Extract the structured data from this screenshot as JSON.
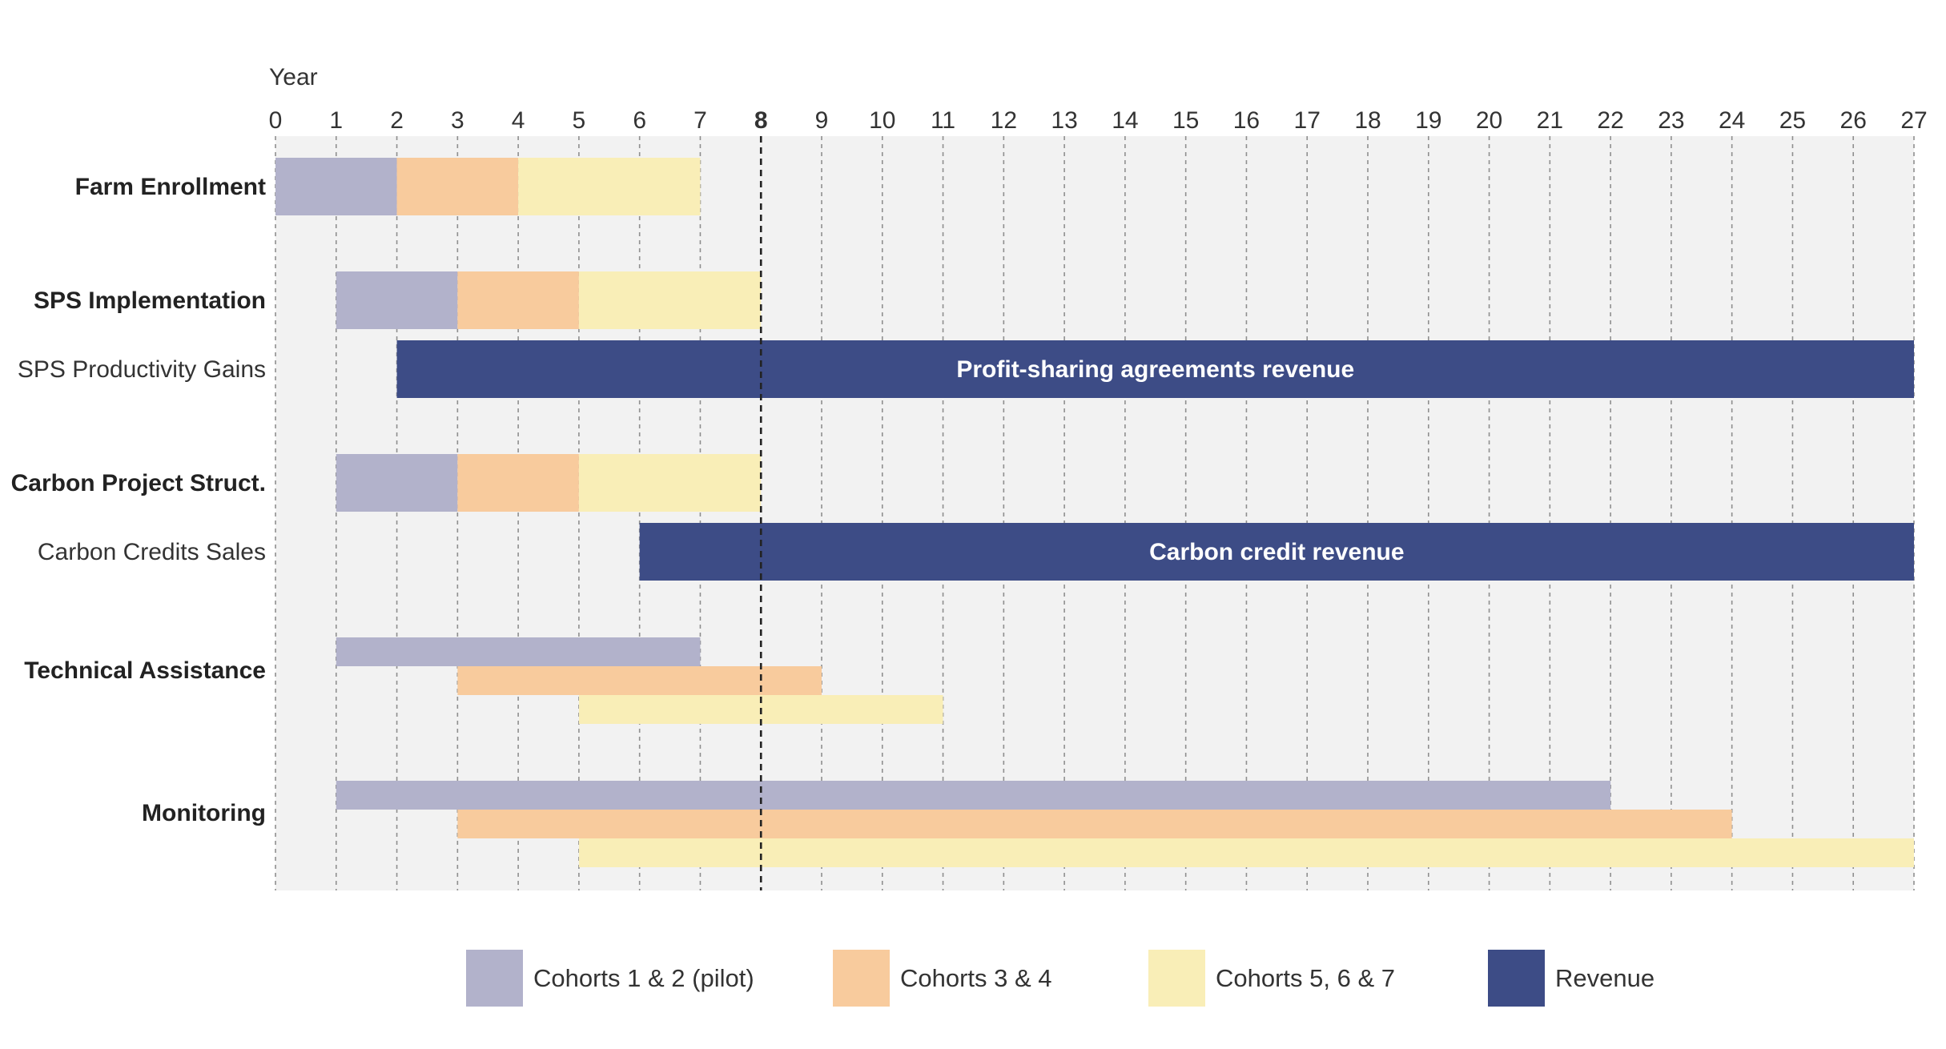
{
  "chart_data": {
    "type": "gantt",
    "x_axis_label": "Year",
    "x_range": [
      0,
      27
    ],
    "x_ticks": [
      0,
      1,
      2,
      3,
      4,
      5,
      6,
      7,
      8,
      9,
      10,
      11,
      12,
      13,
      14,
      15,
      16,
      17,
      18,
      19,
      20,
      21,
      22,
      23,
      24,
      25,
      26,
      27
    ],
    "marker_year": 8,
    "grid": true,
    "legend_position": "bottom",
    "series": [
      {
        "key": "c12",
        "name": "Cohorts 1 & 2 (pilot)",
        "color": "#b2b2cb"
      },
      {
        "key": "c34",
        "name": "Cohorts 3 & 4",
        "color": "#f8cb9d"
      },
      {
        "key": "c567",
        "name": "Cohorts 5, 6 & 7",
        "color": "#f9eeb7"
      },
      {
        "key": "rev",
        "name": "Revenue",
        "color": "#3d4c86"
      }
    ],
    "rows": [
      {
        "label": "Farm Enrollment",
        "bold": true,
        "segments": [
          {
            "series": "c12",
            "start": 0,
            "end": 2
          },
          {
            "series": "c34",
            "start": 2,
            "end": 4
          },
          {
            "series": "c567",
            "start": 4,
            "end": 7
          }
        ]
      },
      {
        "label": "SPS Implementation",
        "bold": true,
        "segments": [
          {
            "series": "c12",
            "start": 1,
            "end": 3
          },
          {
            "series": "c34",
            "start": 3,
            "end": 5
          },
          {
            "series": "c567",
            "start": 5,
            "end": 8
          }
        ]
      },
      {
        "label": "SPS Productivity Gains",
        "bold": false,
        "segments": [
          {
            "series": "rev",
            "start": 2,
            "end": 27,
            "text": "Profit-sharing agreements revenue"
          }
        ]
      },
      {
        "label": "Carbon Project Struct.",
        "bold": true,
        "segments": [
          {
            "series": "c12",
            "start": 1,
            "end": 3
          },
          {
            "series": "c34",
            "start": 3,
            "end": 5
          },
          {
            "series": "c567",
            "start": 5,
            "end": 8
          }
        ]
      },
      {
        "label": "Carbon Credits Sales",
        "bold": false,
        "segments": [
          {
            "series": "rev",
            "start": 6,
            "end": 27,
            "text": "Carbon credit revenue"
          }
        ]
      },
      {
        "label": "Technical Assistance",
        "bold": true,
        "segments": [
          {
            "series": "c12",
            "start": 1,
            "end": 7
          },
          {
            "series": "c34",
            "start": 3,
            "end": 9
          },
          {
            "series": "c567",
            "start": 5,
            "end": 11
          }
        ]
      },
      {
        "label": "Monitoring",
        "bold": true,
        "segments": [
          {
            "series": "c12",
            "start": 1,
            "end": 22
          },
          {
            "series": "c34",
            "start": 3,
            "end": 24
          },
          {
            "series": "c567",
            "start": 5,
            "end": 27
          }
        ]
      }
    ]
  }
}
